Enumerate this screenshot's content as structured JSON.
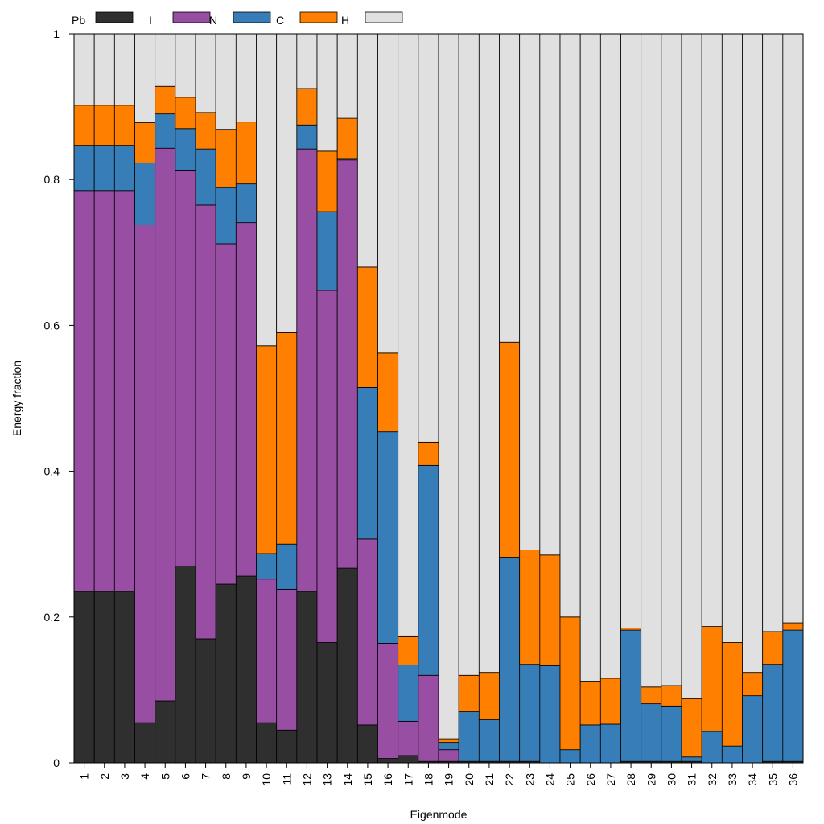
{
  "chart_data": {
    "type": "bar",
    "stacked": true,
    "title": "",
    "xlabel": "Eigenmode",
    "ylabel": "Energy fraction",
    "ylim": [
      0,
      1
    ],
    "y_ticks": [
      "0",
      "0.2",
      "0.4",
      "0.6",
      "0.8",
      "1"
    ],
    "categories": [
      "1",
      "2",
      "3",
      "4",
      "5",
      "6",
      "7",
      "8",
      "9",
      "10",
      "11",
      "12",
      "13",
      "14",
      "15",
      "16",
      "17",
      "18",
      "19",
      "20",
      "21",
      "22",
      "23",
      "24",
      "25",
      "26",
      "27",
      "28",
      "29",
      "30",
      "31",
      "32",
      "33",
      "34",
      "35",
      "36"
    ],
    "legend_position": "top-left",
    "series": [
      {
        "name": "Pb",
        "color": "#2f2f2f",
        "values": [
          0.235,
          0.235,
          0.235,
          0.055,
          0.085,
          0.27,
          0.17,
          0.245,
          0.256,
          0.055,
          0.045,
          0.235,
          0.165,
          0.267,
          0.052,
          0.006,
          0.01,
          0.002,
          0.002,
          0.002,
          0.002,
          0.002,
          0.002,
          0.0,
          0.0,
          0.0,
          0.0,
          0.002,
          0.002,
          0.002,
          0.002,
          0.0,
          0.0,
          0.0,
          0.002,
          0.002
        ]
      },
      {
        "name": "I",
        "color": "#984ea3",
        "values": [
          0.55,
          0.55,
          0.55,
          0.683,
          0.758,
          0.543,
          0.595,
          0.467,
          0.485,
          0.197,
          0.193,
          0.607,
          0.483,
          0.56,
          0.255,
          0.158,
          0.047,
          0.118,
          0.016,
          0.0,
          0.0,
          0.0,
          0.0,
          0.0,
          0.0,
          0.0,
          0.0,
          0.0,
          0.0,
          0.0,
          0.0,
          0.0,
          0.0,
          0.0,
          0.0,
          0.0
        ]
      },
      {
        "name": "N",
        "color": "#377eb8",
        "values": [
          0.062,
          0.062,
          0.062,
          0.085,
          0.047,
          0.057,
          0.077,
          0.077,
          0.053,
          0.035,
          0.062,
          0.033,
          0.108,
          0.002,
          0.208,
          0.29,
          0.077,
          0.288,
          0.01,
          0.068,
          0.057,
          0.28,
          0.133,
          0.133,
          0.018,
          0.052,
          0.053,
          0.18,
          0.079,
          0.076,
          0.006,
          0.043,
          0.023,
          0.092,
          0.133,
          0.18
        ]
      },
      {
        "name": "C",
        "color": "#ff7f00",
        "values": [
          0.055,
          0.055,
          0.055,
          0.055,
          0.038,
          0.043,
          0.05,
          0.08,
          0.085,
          0.285,
          0.29,
          0.05,
          0.083,
          0.055,
          0.165,
          0.108,
          0.04,
          0.032,
          0.005,
          0.05,
          0.065,
          0.295,
          0.157,
          0.152,
          0.182,
          0.06,
          0.063,
          0.003,
          0.023,
          0.028,
          0.08,
          0.144,
          0.142,
          0.032,
          0.045,
          0.01
        ]
      },
      {
        "name": "H",
        "color": "#e0e0e0",
        "values": [
          0.098,
          0.098,
          0.098,
          0.122,
          0.072,
          0.087,
          0.108,
          0.131,
          0.121,
          0.428,
          0.41,
          0.075,
          0.161,
          0.116,
          0.32,
          0.438,
          0.826,
          0.56,
          0.967,
          0.88,
          0.876,
          0.423,
          0.708,
          0.715,
          0.8,
          0.888,
          0.884,
          0.815,
          0.896,
          0.894,
          0.912,
          0.813,
          0.835,
          0.876,
          0.82,
          0.808
        ]
      }
    ]
  }
}
